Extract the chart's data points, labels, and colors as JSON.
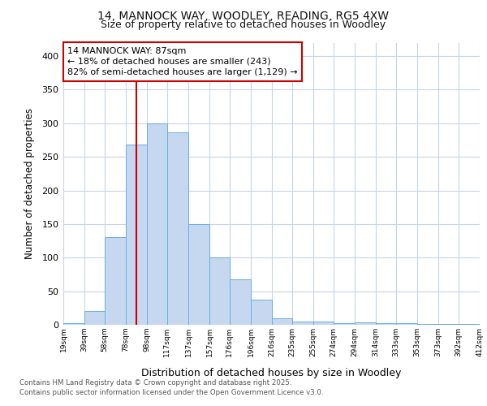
{
  "title1": "14, MANNOCK WAY, WOODLEY, READING, RG5 4XW",
  "title2": "Size of property relative to detached houses in Woodley",
  "xlabel": "Distribution of detached houses by size in Woodley",
  "ylabel": "Number of detached properties",
  "bar_edges": [
    19,
    39,
    58,
    78,
    98,
    117,
    137,
    157,
    176,
    196,
    216,
    235,
    255,
    274,
    294,
    314,
    333,
    353,
    373,
    392,
    412
  ],
  "bar_heights": [
    2,
    20,
    130,
    268,
    300,
    287,
    150,
    100,
    68,
    37,
    10,
    5,
    5,
    3,
    4,
    3,
    2,
    1,
    1,
    1
  ],
  "bar_color": "#c5d8f0",
  "bar_edge_color": "#6aaee0",
  "red_line_x": 88,
  "annotation_title": "14 MANNOCK WAY: 87sqm",
  "annotation_line1": "← 18% of detached houses are smaller (243)",
  "annotation_line2": "82% of semi-detached houses are larger (1,129) →",
  "annotation_box_color": "#ffffff",
  "annotation_box_edgecolor": "#cc0000",
  "red_line_color": "#cc0000",
  "grid_color": "#c8d4e8",
  "bg_color": "#ffffff",
  "plot_bg_color": "#ffffff",
  "footer1": "Contains HM Land Registry data © Crown copyright and database right 2025.",
  "footer2": "Contains public sector information licensed under the Open Government Licence v3.0.",
  "ylim": [
    0,
    420
  ],
  "yticks": [
    0,
    50,
    100,
    150,
    200,
    250,
    300,
    350,
    400
  ],
  "tick_labels": [
    "19sqm",
    "39sqm",
    "58sqm",
    "78sqm",
    "98sqm",
    "117sqm",
    "137sqm",
    "157sqm",
    "176sqm",
    "196sqm",
    "216sqm",
    "235sqm",
    "255sqm",
    "274sqm",
    "294sqm",
    "314sqm",
    "333sqm",
    "353sqm",
    "373sqm",
    "392sqm",
    "412sqm"
  ]
}
